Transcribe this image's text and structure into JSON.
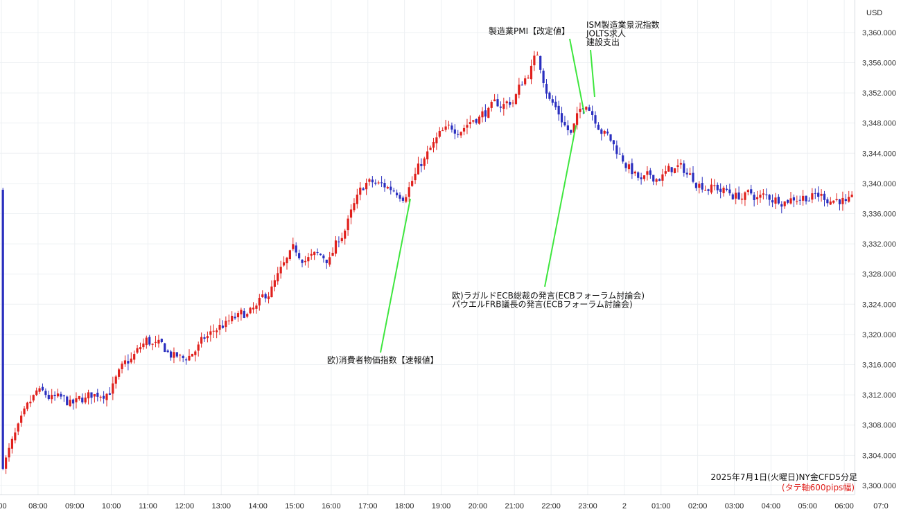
{
  "chart_data": {
    "type": "candlestick",
    "instrument": "NY金CFD",
    "timeframe": "5分足",
    "currency_label": "USD",
    "y_ticks": [
      3300,
      3304,
      3308,
      3312,
      3316,
      3320,
      3324,
      3328,
      3332,
      3336,
      3340,
      3344,
      3348,
      3352,
      3356,
      3360
    ],
    "y_tick_labels": [
      "3,300.000",
      "3,304.000",
      "3,308.000",
      "3,312.000",
      "3,316.000",
      "3,320.000",
      "3,324.000",
      "3,328.000",
      "3,332.000",
      "3,336.000",
      "3,340.000",
      "3,344.000",
      "3,348.000",
      "3,352.000",
      "3,356.000",
      "3,360.000"
    ],
    "ylim": [
      3298.8,
      3364.3
    ],
    "x_ticks": [
      ":00",
      "08:00",
      "09:00",
      "10:00",
      "11:00",
      "12:00",
      "13:00",
      "14:00",
      "15:00",
      "16:00",
      "17:00",
      "18:00",
      "19:00",
      "20:00",
      "21:00",
      "22:00",
      "23:00",
      "2",
      "01:00",
      "02:00",
      "03:00",
      "04:00",
      "05:00",
      "06:00",
      "07:0"
    ],
    "up_color": "#e0201c",
    "down_color": "#2a2fbf",
    "key_closes": [
      {
        "time": "07:05",
        "close": 3303.0
      },
      {
        "time": "08:00",
        "close": 3312.0
      },
      {
        "time": "09:00",
        "close": 3310.5
      },
      {
        "time": "10:00",
        "close": 3313.0
      },
      {
        "time": "11:00",
        "close": 3319.0
      },
      {
        "time": "12:00",
        "close": 3316.5
      },
      {
        "time": "13:00",
        "close": 3321.0
      },
      {
        "time": "14:00",
        "close": 3323.0
      },
      {
        "time": "15:00",
        "close": 3330.5
      },
      {
        "time": "16:00",
        "close": 3330.0
      },
      {
        "time": "17:00",
        "close": 3340.0
      },
      {
        "time": "18:00",
        "close": 3339.0
      },
      {
        "time": "19:00",
        "close": 3346.0
      },
      {
        "time": "20:00",
        "close": 3349.0
      },
      {
        "time": "21:00",
        "close": 3351.0
      },
      {
        "time": "21:40",
        "close": 3357.0
      },
      {
        "time": "22:00",
        "close": 3351.5
      },
      {
        "time": "22:35",
        "close": 3346.5
      },
      {
        "time": "23:00",
        "close": 3351.0
      },
      {
        "time": "23:45",
        "close": 3345.0
      },
      {
        "time": "00:30",
        "close": 3340.0
      },
      {
        "time": "01:30",
        "close": 3342.0
      },
      {
        "time": "02:00",
        "close": 3340.5
      },
      {
        "time": "03:00",
        "close": 3338.5
      },
      {
        "time": "04:00",
        "close": 3338.0
      },
      {
        "time": "05:00",
        "close": 3338.5
      },
      {
        "time": "06:00",
        "close": 3338.0
      },
      {
        "time": "07:00",
        "close": 3339.0
      },
      {
        "time": "07:05",
        "close": 3337.0
      }
    ],
    "annotations": [
      {
        "lines": [
          "欧)消費者物価指数【速報値】"
        ]
      },
      {
        "lines": [
          "欧)ラガルドECB総裁の発言(ECBフォーラム討論会)",
          "パウエルFRB議長の発言(ECBフォーラム討論会)"
        ]
      },
      {
        "lines": [
          "製造業PMI【改定値】"
        ]
      },
      {
        "lines": [
          "ISM製造業景況指数",
          "JOLTS求人",
          "建設支出"
        ]
      }
    ],
    "annotation_line_color": "#3ee63e",
    "caption_main": "2025年7月1日(火曜日)NY金CFD5分足",
    "caption_sub": "(タテ軸600pips幅)",
    "caption_sub_color": "#e0201c"
  }
}
